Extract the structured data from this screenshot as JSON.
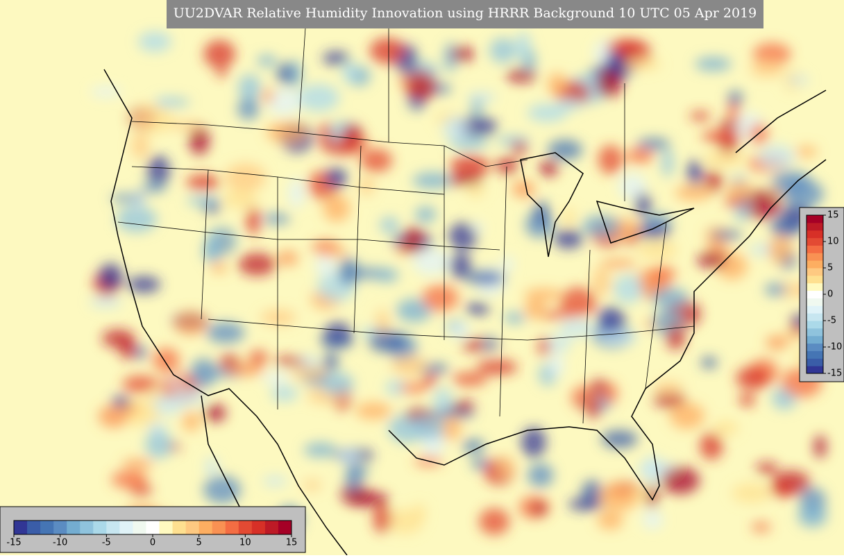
{
  "title": "UU2DVAR Relative Humidity Innovation using HRRR Background 10 UTC 05 Apr 2019",
  "colormap": [
    "#313695",
    "#3a5da8",
    "#4575b4",
    "#5b8cc2",
    "#74add1",
    "#8fc3dd",
    "#abd9e9",
    "#c7e6f0",
    "#e0f3f8",
    "#f0f9f0",
    "#ffffff",
    "#fffac0",
    "#fee090",
    "#fec981",
    "#fdae61",
    "#f99153",
    "#f46d43",
    "#e34a33",
    "#d73027",
    "#bd1a26",
    "#a50026"
  ],
  "colorbars": {
    "horizontal": {
      "ticks": [
        -15,
        -10,
        -5,
        0,
        5,
        10,
        15
      ]
    },
    "vertical": {
      "ticks": [
        15,
        10,
        5,
        0,
        -5,
        -10,
        -15
      ]
    }
  }
}
